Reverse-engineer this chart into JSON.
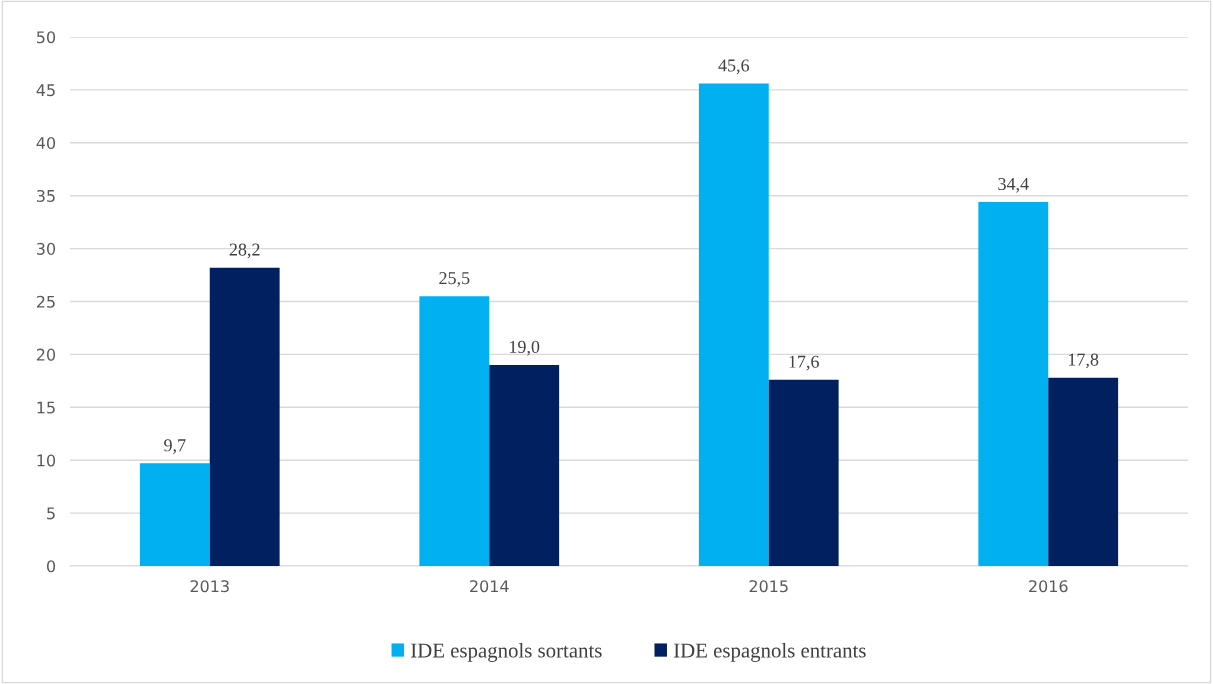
{
  "chart_data": {
    "type": "bar",
    "categories": [
      "2013",
      "2014",
      "2015",
      "2016"
    ],
    "series": [
      {
        "name": "IDE espagnols sortants",
        "color": "#00b0f0",
        "values": [
          9.7,
          25.5,
          45.6,
          34.4
        ],
        "value_labels": [
          "9,7",
          "25,5",
          "45,6",
          "34,4"
        ]
      },
      {
        "name": "IDE espagnols entrants",
        "color": "#002060",
        "values": [
          28.2,
          19.0,
          17.6,
          17.8
        ],
        "value_labels": [
          "28,2",
          "19,0",
          "17,6",
          "17,8"
        ]
      }
    ],
    "ylim": [
      0,
      50
    ],
    "yticks": [
      0,
      5,
      10,
      15,
      20,
      25,
      30,
      35,
      40,
      45,
      50
    ],
    "grid": "y",
    "legend": "bottom"
  }
}
